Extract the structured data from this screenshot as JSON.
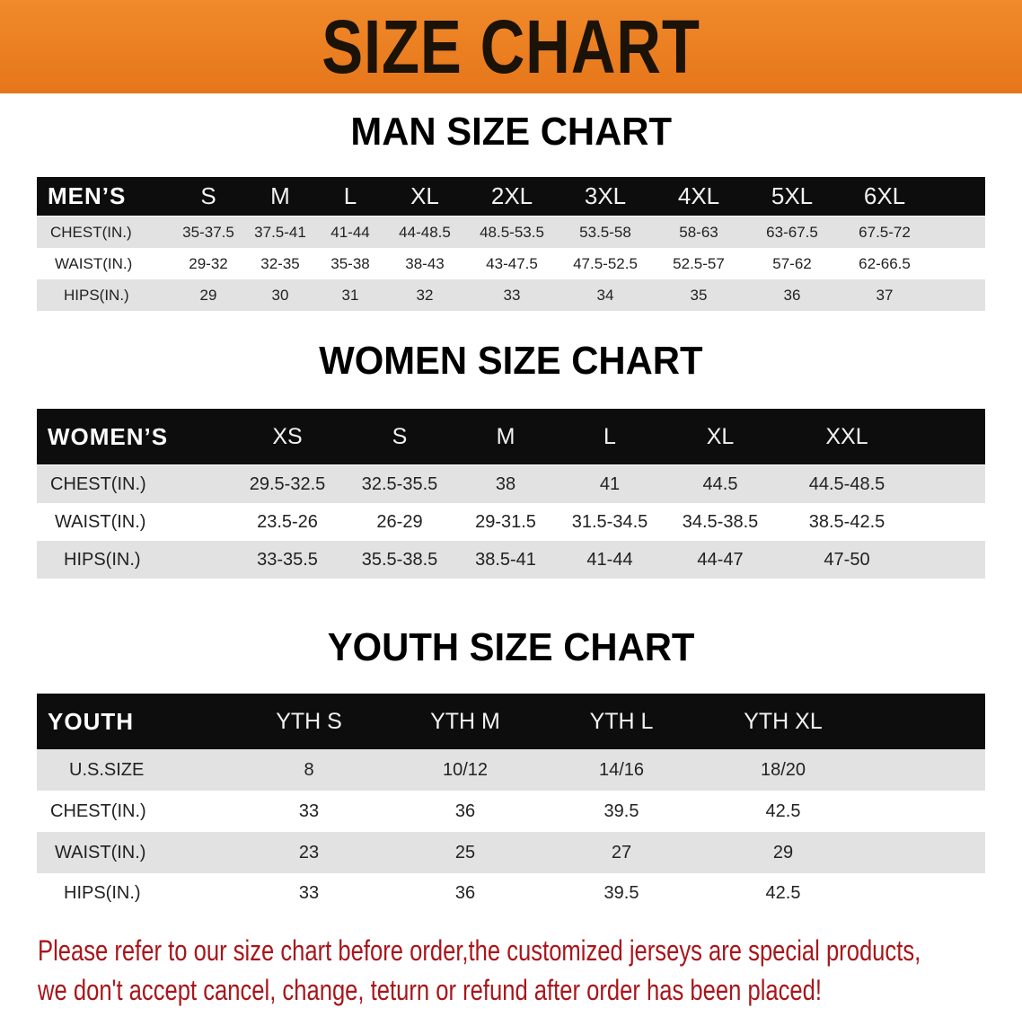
{
  "banner": {
    "title": "SIZE CHART",
    "color": "#e97b1e"
  },
  "men": {
    "title": "MAN SIZE CHART",
    "header": "MEN’S",
    "sizes": [
      "S",
      "M",
      "L",
      "XL",
      "2XL",
      "3XL",
      "4XL",
      "5XL",
      "6XL"
    ],
    "rows": [
      {
        "label": "CHEST(IN.)",
        "values": [
          "35-37.5",
          "37.5-41",
          "41-44",
          "44-48.5",
          "48.5-53.5",
          "53.5-58",
          "58-63",
          "63-67.5",
          "67.5-72"
        ]
      },
      {
        "label": "WAIST(IN.)",
        "values": [
          "29-32",
          "32-35",
          "35-38",
          "38-43",
          "43-47.5",
          "47.5-52.5",
          "52.5-57",
          "57-62",
          "62-66.5"
        ]
      },
      {
        "label": "HIPS(IN.)",
        "values": [
          "29",
          "30",
          "31",
          "32",
          "33",
          "34",
          "35",
          "36",
          "37"
        ]
      }
    ]
  },
  "women": {
    "title": "WOMEN SIZE CHART",
    "header": "WOMEN’S",
    "sizes": [
      "XS",
      "S",
      "M",
      "L",
      "XL",
      "XXL"
    ],
    "rows": [
      {
        "label": "CHEST(IN.)",
        "values": [
          "29.5-32.5",
          "32.5-35.5",
          "38",
          "41",
          "44.5",
          "44.5-48.5"
        ]
      },
      {
        "label": "WAIST(IN.)",
        "values": [
          "23.5-26",
          "26-29",
          "29-31.5",
          "31.5-34.5",
          "34.5-38.5",
          "38.5-42.5"
        ]
      },
      {
        "label": "HIPS(IN.)",
        "values": [
          "33-35.5",
          "35.5-38.5",
          "38.5-41",
          "41-44",
          "44-47",
          "47-50"
        ]
      }
    ]
  },
  "youth": {
    "title": "YOUTH SIZE CHART",
    "header": "YOUTH",
    "sizes": [
      "YTH S",
      "YTH M",
      "YTH L",
      "YTH XL"
    ],
    "rows": [
      {
        "label": "U.S.SIZE",
        "values": [
          "8",
          "10/12",
          "14/16",
          "18/20"
        ]
      },
      {
        "label": "CHEST(IN.)",
        "values": [
          "33",
          "36",
          "39.5",
          "42.5"
        ]
      },
      {
        "label": "WAIST(IN.)",
        "values": [
          "23",
          "25",
          "27",
          "29"
        ]
      },
      {
        "label": "HIPS(IN.)",
        "values": [
          "33",
          "36",
          "39.5",
          "42.5"
        ]
      }
    ]
  },
  "note": {
    "line1": "Please refer to our size chart before order,the customized jerseys are special products,",
    "line2": "we don't accept cancel, change, teturn or refund after order has been placed!",
    "color": "#a8161b"
  }
}
